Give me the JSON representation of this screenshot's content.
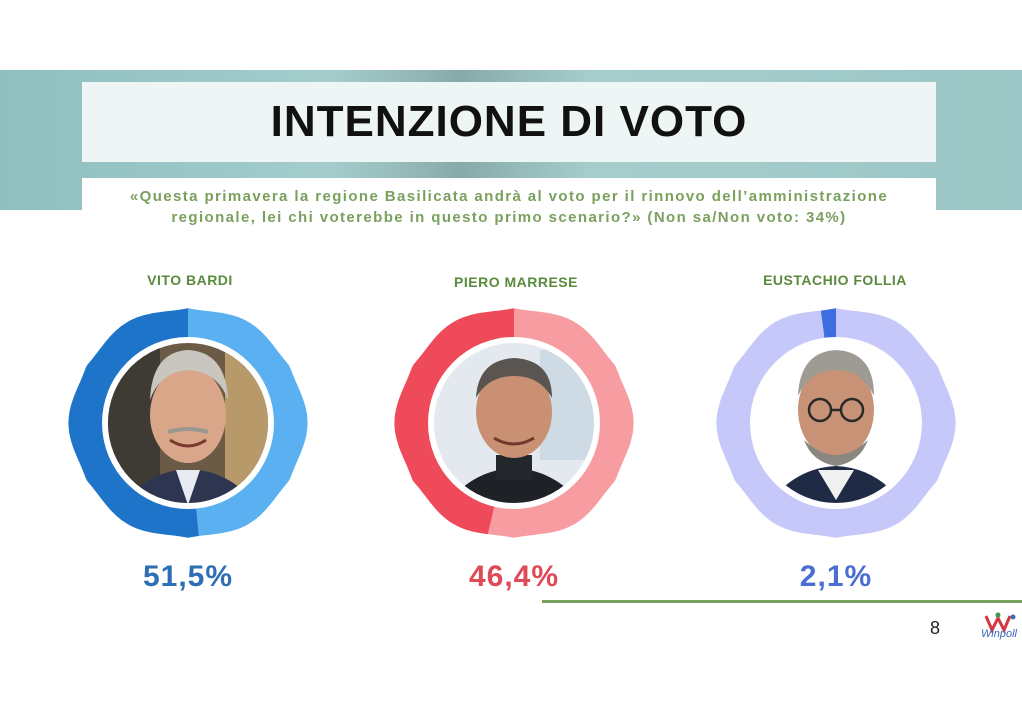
{
  "header": {
    "title": "INTENZIONE DI VOTO",
    "subtitle_line1": "«Questa primavera la regione Basilicata andrà al voto per il rinnovo dell’amministrazione",
    "subtitle_line2": "regionale, lei chi voterebbe in questo primo scenario?» (Non sa/Non voto: 34%)"
  },
  "chart_data": {
    "type": "donut",
    "title": "INTENZIONE DI VOTO",
    "series": [
      {
        "name": "VITO BARDI",
        "value": 51.5,
        "label": "51,5%",
        "color_dark": "#1e74c8",
        "color_light": "#5ab0f0",
        "label_color": "#2c6fb5"
      },
      {
        "name": "PIERO MARRESE",
        "value": 46.4,
        "label": "46,4%",
        "color_dark": "#ef4a59",
        "color_light": "#f79ca0",
        "label_color": "#e04a57"
      },
      {
        "name": "EUSTACHIO FOLLIA",
        "value": 2.1,
        "label": "2,1%",
        "color_dark": "#3f6ee0",
        "color_light": "#c5c8f8",
        "label_color": "#4a6fd0"
      }
    ],
    "note": "Non sa/Non voto: 34%"
  },
  "footer": {
    "page_number": "8",
    "logo_text": "Winpoll"
  }
}
